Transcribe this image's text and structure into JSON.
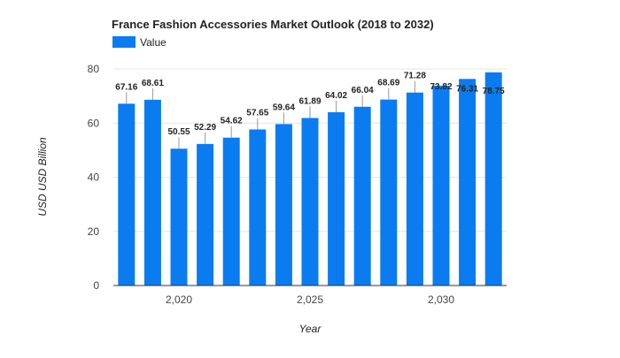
{
  "chart_data": {
    "type": "bar",
    "title": "France Fashion Accessories Market Outlook (2018 to 2032)",
    "xlabel": "Year",
    "ylabel": "USD USD Billion",
    "legend": {
      "position": "top-left",
      "entries": [
        "Value"
      ]
    },
    "series": [
      {
        "name": "Value",
        "color": "#0a7cf0",
        "x": [
          2018,
          2019,
          2020,
          2021,
          2022,
          2023,
          2024,
          2025,
          2026,
          2027,
          2028,
          2029,
          2030,
          2031,
          2032
        ],
        "values": [
          67.16,
          68.61,
          50.55,
          52.29,
          54.62,
          57.65,
          59.64,
          61.89,
          64.02,
          66.04,
          68.69,
          71.28,
          73.82,
          76.31,
          78.75
        ],
        "labels": [
          "67.16",
          "68.61",
          "50.55",
          "52.29",
          "54.62",
          "57.65",
          "59.64",
          "61.89",
          "64.02",
          "66.04",
          "68.69",
          "71.28",
          "73.82",
          "76.31",
          "78.75"
        ]
      }
    ],
    "ylim": [
      0,
      80
    ],
    "yticks": [
      {
        "value": 0,
        "label": "0"
      },
      {
        "value": 20,
        "label": "20"
      },
      {
        "value": 40,
        "label": "40"
      },
      {
        "value": 60,
        "label": "60"
      },
      {
        "value": 80,
        "label": "80"
      }
    ],
    "xticks": [
      {
        "value": 2020,
        "label": "2,020"
      },
      {
        "value": 2025,
        "label": "2,025"
      },
      {
        "value": 2030,
        "label": "2,030"
      }
    ],
    "grid": true
  }
}
